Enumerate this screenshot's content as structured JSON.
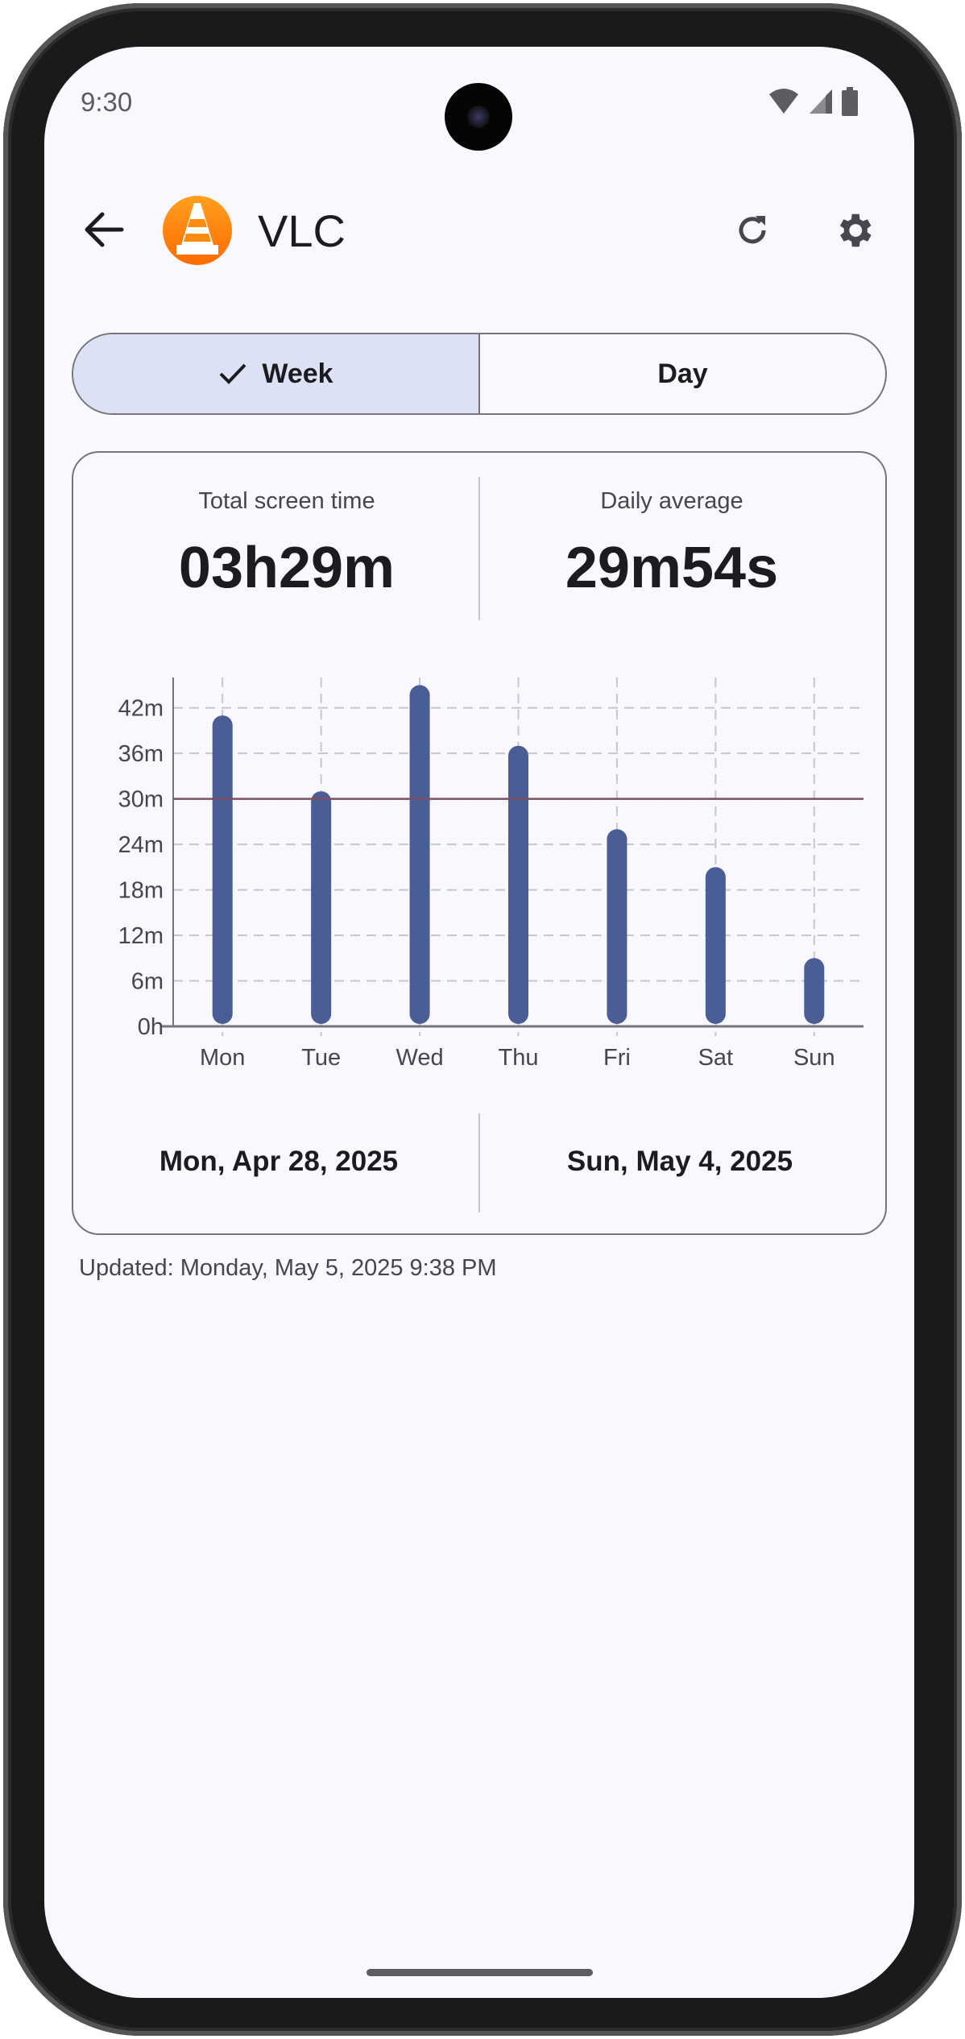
{
  "status_bar": {
    "time": "9:30",
    "icons": [
      "wifi-icon",
      "signal-icon",
      "battery-icon"
    ]
  },
  "header": {
    "title": "VLC",
    "app_icon": "vlc-cone-icon",
    "actions": [
      "refresh-icon",
      "settings-gear-icon"
    ]
  },
  "segmented": {
    "options": [
      {
        "label": "Week",
        "selected": true
      },
      {
        "label": "Day",
        "selected": false
      }
    ]
  },
  "summary": {
    "total_label": "Total screen time",
    "total_value": "03h29m",
    "average_label": "Daily average",
    "average_value": "29m54s"
  },
  "chart_data": {
    "type": "bar",
    "categories": [
      "Mon",
      "Tue",
      "Wed",
      "Thu",
      "Fri",
      "Sat",
      "Sun"
    ],
    "values": [
      41,
      31,
      45,
      37,
      26,
      21,
      9
    ],
    "unit": "minutes",
    "ylim": [
      0,
      46
    ],
    "yticks": [
      0,
      6,
      12,
      18,
      24,
      30,
      36,
      42
    ],
    "ytick_labels": [
      "0h",
      "6m",
      "12m",
      "18m",
      "24m",
      "30m",
      "36m",
      "42m"
    ],
    "reference_line": 30,
    "grid": true,
    "colors": {
      "bar": "#4a5d95",
      "reference": "#7d4f63",
      "grid": "#c6c6d0"
    }
  },
  "range": {
    "start": "Mon, Apr 28, 2025",
    "end": "Sun, May 4, 2025"
  },
  "updated": "Updated: Monday, May 5, 2025 9:38 PM"
}
